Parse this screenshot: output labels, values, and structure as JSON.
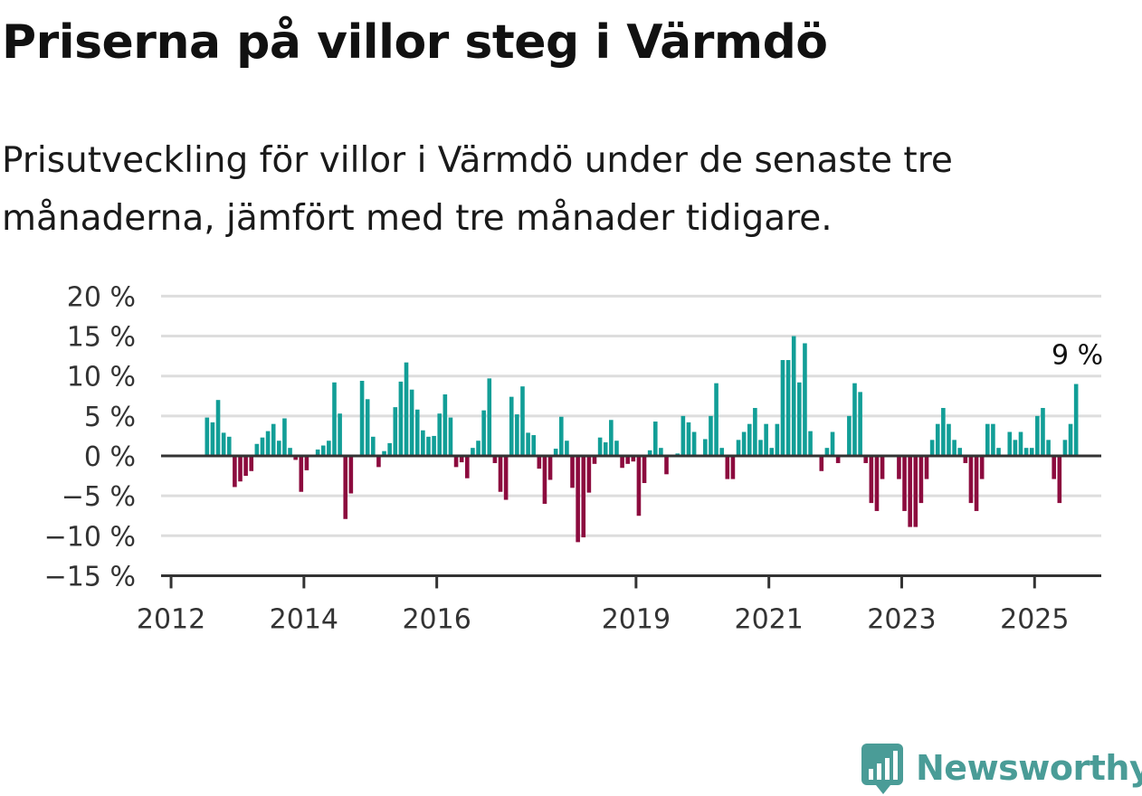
{
  "title": "Priserna på villor steg i Värmdö",
  "subtitle": "Prisutveckling för villor i Värmdö under de senaste tre månaderna, jämfört med tre månader tidigare.",
  "brand": {
    "name": "Newsworthy",
    "icon": "newsworthy-logo-icon",
    "color": "#4a9c97"
  },
  "colors": {
    "positive": "#129e97",
    "negative": "#8c0b3e",
    "grid": "#dddddd",
    "axis": "#333333"
  },
  "chart_data": {
    "type": "bar",
    "x_start": "2012-07",
    "x_step": "month",
    "y_unit": "%",
    "ylim": [
      -15,
      20
    ],
    "yticks": [
      20,
      15,
      10,
      5,
      0,
      -5,
      -10,
      -15
    ],
    "ytick_labels": [
      "20 %",
      "15 %",
      "10 %",
      "5 %",
      "0 %",
      "−5 %",
      "−10 %",
      "−15 %"
    ],
    "xticks": [
      "2012",
      "2014",
      "2016",
      "2019",
      "2021",
      "2023",
      "2025"
    ],
    "grid": true,
    "annotation": {
      "text": "9 %",
      "target": "last"
    },
    "values": [
      4.8,
      4.2,
      7.0,
      2.9,
      2.4,
      -3.9,
      -3.2,
      -2.5,
      -1.9,
      1.5,
      2.3,
      3.1,
      4.0,
      1.9,
      4.7,
      1.0,
      -0.5,
      -4.5,
      -1.8,
      0.1,
      0.8,
      1.3,
      1.9,
      9.2,
      5.3,
      -7.9,
      -4.7,
      0.1,
      9.4,
      7.1,
      2.4,
      -1.4,
      0.6,
      1.6,
      6.1,
      9.3,
      11.7,
      8.3,
      5.8,
      3.2,
      2.4,
      2.5,
      5.3,
      7.7,
      4.8,
      -1.4,
      -0.8,
      -2.8,
      1.0,
      1.9,
      5.7,
      9.7,
      -0.9,
      -4.5,
      -5.5,
      7.4,
      5.2,
      8.7,
      2.9,
      2.6,
      -1.6,
      -6.0,
      -3.0,
      0.9,
      4.9,
      1.9,
      -4.0,
      -10.8,
      -10.2,
      -4.6,
      -1.0,
      2.3,
      1.7,
      4.5,
      1.9,
      -1.5,
      -1.0,
      -0.7,
      -7.5,
      -3.4,
      0.7,
      4.3,
      1.0,
      -2.3,
      0.0,
      0.3,
      5.0,
      4.2,
      3.0,
      0.0,
      2.1,
      5.0,
      9.1,
      1.0,
      -2.9,
      -2.9,
      2.0,
      3.0,
      4.0,
      6.0,
      2.0,
      4.0,
      1.0,
      4.0,
      12.0,
      12.0,
      15.0,
      9.2,
      14.1,
      3.1,
      0.0,
      -1.9,
      1.0,
      3.0,
      -0.9,
      0.0,
      5.0,
      9.1,
      8.0,
      -0.9,
      -5.9,
      -6.9,
      -2.9,
      0.0,
      0.0,
      -2.9,
      -6.9,
      -8.9,
      -8.9,
      -5.9,
      -2.9,
      2.0,
      4.0,
      6.0,
      4.0,
      2.0,
      1.0,
      -0.9,
      -5.9,
      -6.9,
      -2.9,
      4.0,
      4.0,
      1.0,
      0.0,
      3.0,
      2.0,
      3.0,
      1.0,
      1.0,
      5.0,
      6.0,
      2.0,
      -2.9,
      -5.9,
      2.0,
      4.0,
      9.0
    ]
  }
}
